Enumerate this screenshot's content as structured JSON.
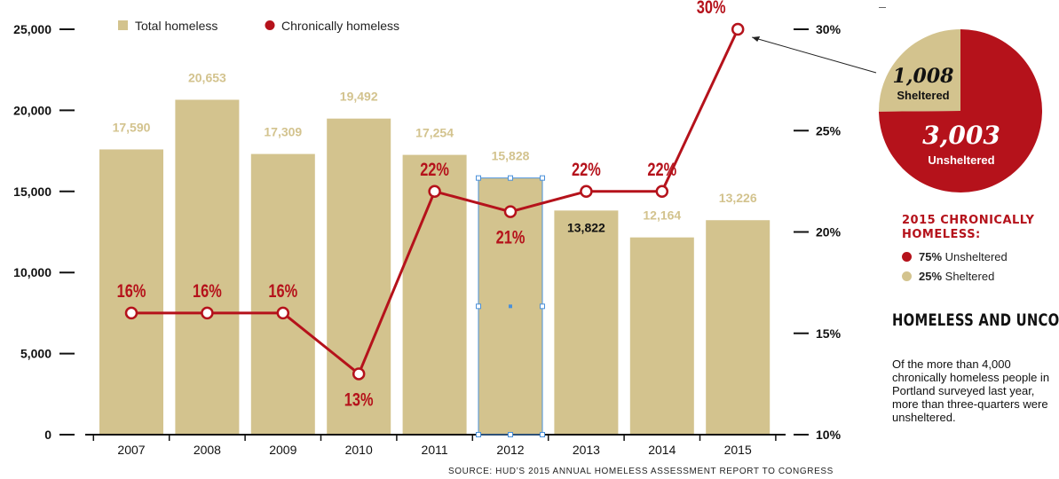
{
  "chart_data": {
    "type": "bar+line",
    "categories": [
      "2007",
      "2008",
      "2009",
      "2010",
      "2011",
      "2012",
      "2013",
      "2014",
      "2015"
    ],
    "series": [
      {
        "name": "Total homeless",
        "type": "bar",
        "axis": "left",
        "values": [
          17590,
          20653,
          17309,
          19492,
          17254,
          15828,
          13822,
          12164,
          13226
        ],
        "labels": [
          "17,590",
          "20,653",
          "17,309",
          "19,492",
          "17,254",
          "15,828",
          "13,822",
          "12,164",
          "13,226"
        ]
      },
      {
        "name": "Chronically homeless",
        "type": "line",
        "axis": "right",
        "values": [
          16,
          16,
          16,
          13,
          22,
          21,
          22,
          22,
          30
        ],
        "labels": [
          "16%",
          "16%",
          "16%",
          "13%",
          "22%",
          "21%",
          "22%",
          "22%",
          "30%"
        ]
      }
    ],
    "left_axis": {
      "ylim": [
        0,
        25000
      ],
      "ticks": [
        0,
        5000,
        10000,
        15000,
        20000,
        25000
      ],
      "tick_labels": [
        "0",
        "5,000",
        "10,000",
        "15,000",
        "20,000",
        "25,000"
      ]
    },
    "right_axis": {
      "ylim": [
        10,
        30
      ],
      "ticks": [
        10,
        15,
        20,
        25,
        30
      ],
      "tick_labels": [
        "10%",
        "15%",
        "20%",
        "25%",
        "30%"
      ]
    },
    "legend_position": "top-left",
    "colors": {
      "bar": "#d3c38e",
      "line": "#b5121b",
      "bar_label": "#d3c38e",
      "dark_label": "#111111",
      "selection": "#4a90d9"
    },
    "selected_category": "2012",
    "pie": {
      "title": "2015 CHRONICALLY HOMELESS:",
      "slices": [
        {
          "name": "Unsheltered",
          "value": 3003,
          "value_label": "3,003",
          "percent": 75,
          "percent_label": "75%",
          "color": "#b5121b"
        },
        {
          "name": "Sheltered",
          "value": 1008,
          "value_label": "1,008",
          "percent": 25,
          "percent_label": "25%",
          "color": "#d3c38e"
        }
      ]
    },
    "source": "SOURCE: HUD’S 2015 ANNUAL HOMELESS ASSESSMENT REPORT TO CONGRESS"
  },
  "headline": "HOMELESS AND UNCOVERED",
  "body": "Of the more than 4,000 chronically homeless people in Portland surveyed last year, more than three-quarters were unsheltered."
}
